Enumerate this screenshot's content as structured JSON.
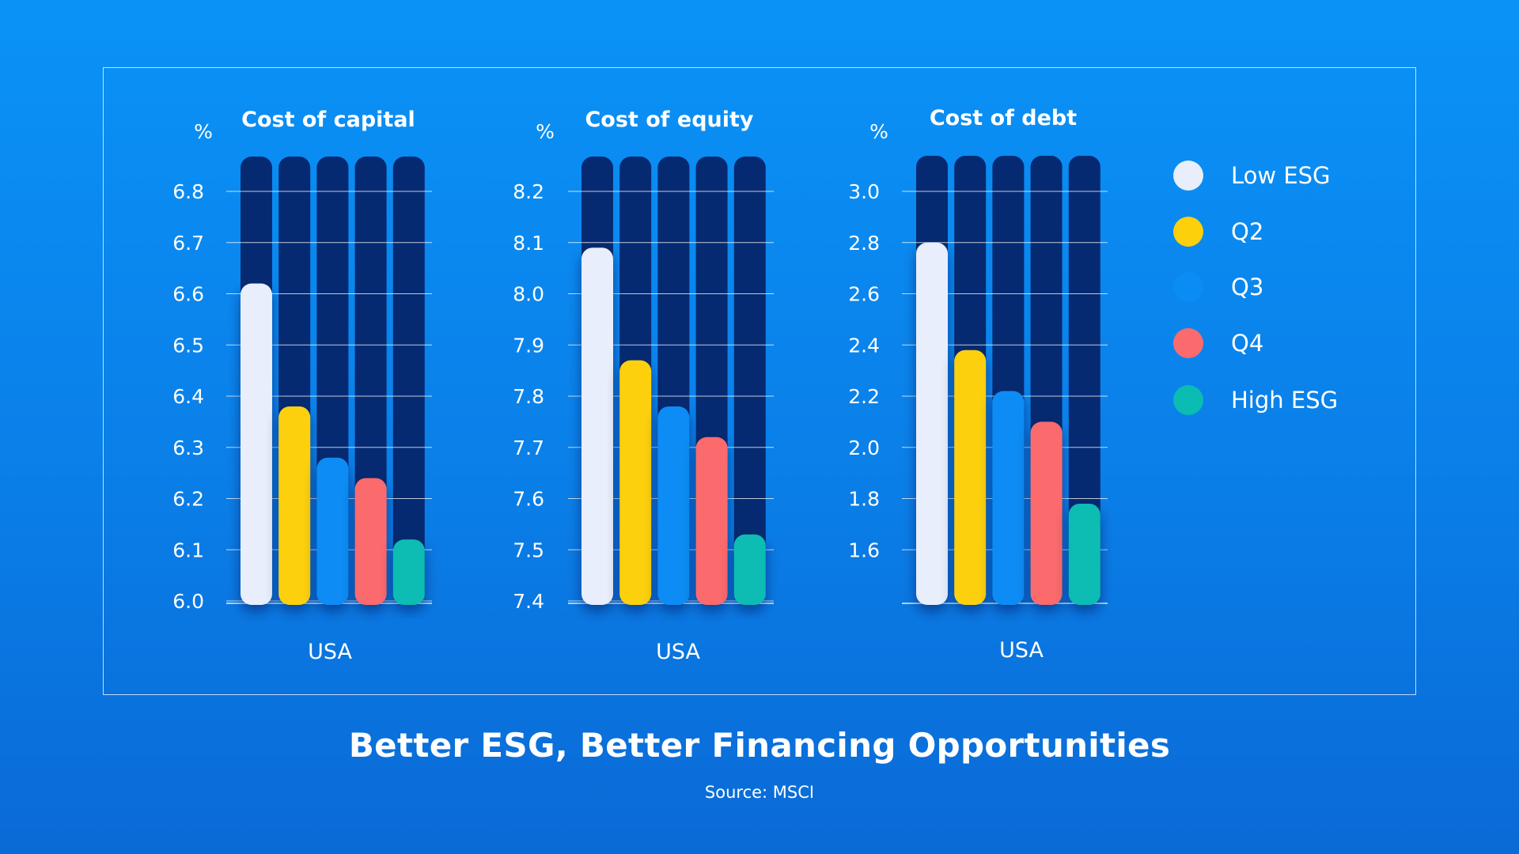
{
  "title": "Better ESG, Better Financing Opportunities",
  "source": "Source: MSCI",
  "colors": {
    "track": "#062a72",
    "grid": "#ffffff"
  },
  "legend": [
    {
      "label": "Low ESG",
      "color": "#e8eefb"
    },
    {
      "label": "Q2",
      "color": "#fcd00a"
    },
    {
      "label": "Q3",
      "color": "#0a8cf5"
    },
    {
      "label": "Q4",
      "color": "#fb6a6c"
    },
    {
      "label": "High ESG",
      "color": "#0bbcb2"
    }
  ],
  "chart_data": [
    {
      "type": "bar",
      "title": "Cost of capital",
      "unit": "%",
      "category": "USA",
      "ylim": [
        6.0,
        6.8
      ],
      "ticks": [
        "6.8",
        "6.7",
        "6.6",
        "6.5",
        "6.4",
        "6.3",
        "6.2",
        "6.1",
        "6.0"
      ],
      "series": [
        {
          "name": "Low ESG",
          "value": 6.62
        },
        {
          "name": "Q2",
          "value": 6.38
        },
        {
          "name": "Q3",
          "value": 6.28
        },
        {
          "name": "Q4",
          "value": 6.24
        },
        {
          "name": "High ESG",
          "value": 6.12
        }
      ]
    },
    {
      "type": "bar",
      "title": "Cost of equity",
      "unit": "%",
      "category": "USA",
      "ylim": [
        7.4,
        8.2
      ],
      "ticks": [
        "8.2",
        "8.1",
        "8.0",
        "7.9",
        "7.8",
        "7.7",
        "7.6",
        "7.5",
        "7.4"
      ],
      "series": [
        {
          "name": "Low ESG",
          "value": 8.09
        },
        {
          "name": "Q2",
          "value": 7.87
        },
        {
          "name": "Q3",
          "value": 7.78
        },
        {
          "name": "Q4",
          "value": 7.72
        },
        {
          "name": "High ESG",
          "value": 7.53
        }
      ]
    },
    {
      "type": "bar",
      "title": "Cost of debt",
      "unit": "%",
      "category": "USA",
      "ylim": [
        1.4,
        3.0
      ],
      "ticks": [
        "3.0",
        "2.8",
        "2.6",
        "2.4",
        "2.2",
        "2.0",
        "1.8",
        "1.6"
      ],
      "series": [
        {
          "name": "Low ESG",
          "value": 2.8
        },
        {
          "name": "Q2",
          "value": 2.38
        },
        {
          "name": "Q3",
          "value": 2.22
        },
        {
          "name": "Q4",
          "value": 2.1
        },
        {
          "name": "High ESG",
          "value": 1.78
        }
      ]
    }
  ]
}
